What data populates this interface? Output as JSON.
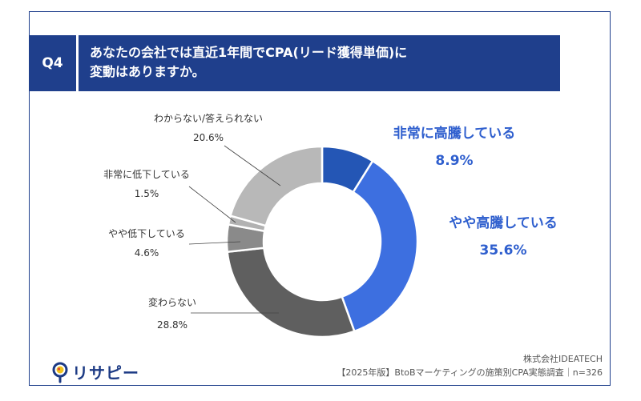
{
  "question": {
    "badge": "Q4",
    "line1": "あなたの会社では直近1年間でCPA(リード獲得単価)に",
    "line2": "変動はありますか。"
  },
  "colors": {
    "navy": "#1f3f8c",
    "accent_text": "#2f5fce",
    "label_text": "#333333",
    "slices": [
      "#2456b5",
      "#3d6fe0",
      "#5f5f5f",
      "#8a8a8a",
      "#b2b2b2",
      "#b8b8b8"
    ]
  },
  "chart_data": {
    "type": "pie",
    "donut": true,
    "unit": "%",
    "slices": [
      {
        "label": "非常に高騰している",
        "value": 8.9,
        "value_label": "8.9%"
      },
      {
        "label": "やや高騰している",
        "value": 35.6,
        "value_label": "35.6%"
      },
      {
        "label": "変わらない",
        "value": 28.8,
        "value_label": "28.8%"
      },
      {
        "label": "やや低下している",
        "value": 4.6,
        "value_label": "4.6%"
      },
      {
        "label": "非常に低下している",
        "value": 1.5,
        "value_label": "1.5%"
      },
      {
        "label": "わからない/答えられない",
        "value": 20.6,
        "value_label": "20.6%"
      }
    ]
  },
  "logo": {
    "text": "リサピー",
    "icon": "magnifier-pin-icon"
  },
  "footer": {
    "company": "株式会社IDEATECH",
    "source": "【2025年版】BtoBマーケティングの施策別CPA実態調査｜n=326"
  }
}
